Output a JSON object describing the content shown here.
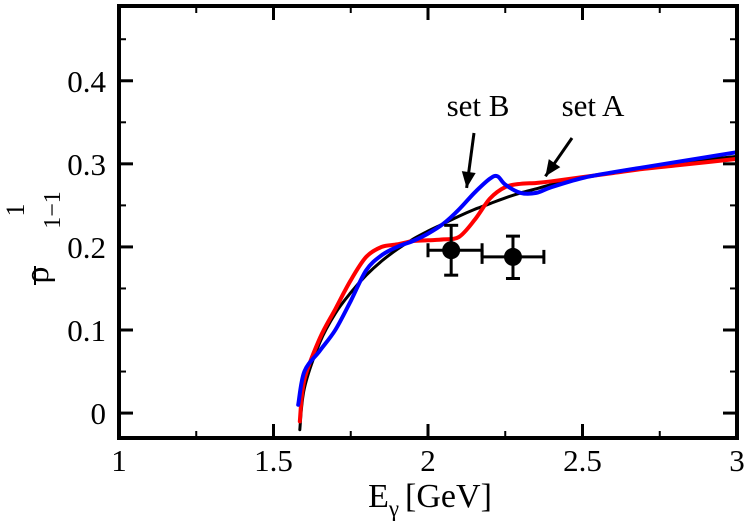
{
  "chart_data": {
    "type": "line",
    "xlabel": "E",
    "xlabel_sub": "γ",
    "xlabel_unit": "[GeV]",
    "ylabel": "ρ",
    "ylabel_sup": "1",
    "ylabel_sub": "1−1",
    "xlim": [
      1,
      3
    ],
    "ylim": [
      -0.03,
      0.49
    ],
    "x_ticks": [
      1,
      1.5,
      2,
      2.5,
      3
    ],
    "x_tick_labels": [
      "1",
      "1.5",
      "2",
      "2.5",
      "3"
    ],
    "y_ticks": [
      0,
      0.1,
      0.2,
      0.3,
      0.4
    ],
    "y_tick_labels": [
      "0",
      "0.1",
      "0.2",
      "0.3",
      "0.4"
    ],
    "grid": false,
    "series": [
      {
        "name": "",
        "color": "#000000",
        "x": [
          1.585,
          1.6,
          1.65,
          1.7,
          1.75,
          1.8,
          1.85,
          1.9,
          1.95,
          2.0,
          2.05,
          2.1,
          2.15,
          2.2,
          2.25,
          2.3,
          2.35,
          2.4,
          2.5,
          2.6,
          2.7,
          2.8,
          2.9,
          3.0
        ],
        "y": [
          -0.02,
          0.03,
          0.085,
          0.12,
          0.145,
          0.166,
          0.183,
          0.197,
          0.209,
          0.219,
          0.228,
          0.237,
          0.245,
          0.252,
          0.259,
          0.265,
          0.27,
          0.275,
          0.283,
          0.29,
          0.296,
          0.3,
          0.305,
          0.309
        ]
      },
      {
        "name": "set A",
        "color": "#ff0000",
        "x": [
          1.585,
          1.6,
          1.65,
          1.7,
          1.75,
          1.8,
          1.85,
          1.9,
          1.95,
          2.0,
          2.05,
          2.1,
          2.15,
          2.2,
          2.25,
          2.3,
          2.35,
          2.4,
          2.5,
          2.6,
          2.7,
          2.8,
          2.9,
          3.0
        ],
        "y": [
          -0.01,
          0.04,
          0.09,
          0.125,
          0.16,
          0.188,
          0.2,
          0.203,
          0.207,
          0.208,
          0.209,
          0.212,
          0.232,
          0.258,
          0.272,
          0.276,
          0.277,
          0.279,
          0.284,
          0.289,
          0.294,
          0.298,
          0.302,
          0.306
        ]
      },
      {
        "name": "set B",
        "color": "#0000ff",
        "x": [
          1.58,
          1.6,
          1.65,
          1.7,
          1.75,
          1.8,
          1.85,
          1.9,
          1.95,
          2.0,
          2.05,
          2.1,
          2.15,
          2.2,
          2.225,
          2.25,
          2.3,
          2.35,
          2.4,
          2.5,
          2.6,
          2.7,
          2.8,
          2.9,
          3.0
        ],
        "y": [
          0.01,
          0.05,
          0.075,
          0.1,
          0.135,
          0.172,
          0.19,
          0.2,
          0.207,
          0.216,
          0.228,
          0.245,
          0.265,
          0.282,
          0.285,
          0.275,
          0.265,
          0.265,
          0.272,
          0.283,
          0.29,
          0.296,
          0.302,
          0.308,
          0.314
        ]
      }
    ],
    "data_points": {
      "color": "#000000",
      "points": [
        {
          "x": 2.075,
          "y": 0.196,
          "x_err": [
            2.0,
            2.175
          ],
          "y_err": [
            0.166,
            0.226
          ]
        },
        {
          "x": 2.275,
          "y": 0.188,
          "x_err": [
            2.175,
            2.375
          ],
          "y_err": [
            0.162,
            0.213
          ]
        }
      ]
    },
    "annotations": [
      {
        "text": "set B",
        "target_series": "set B",
        "arrow_to": [
          2.125,
          0.271
        ]
      },
      {
        "text": "set A",
        "target_series": "set A",
        "arrow_to": [
          2.38,
          0.285
        ]
      }
    ]
  }
}
